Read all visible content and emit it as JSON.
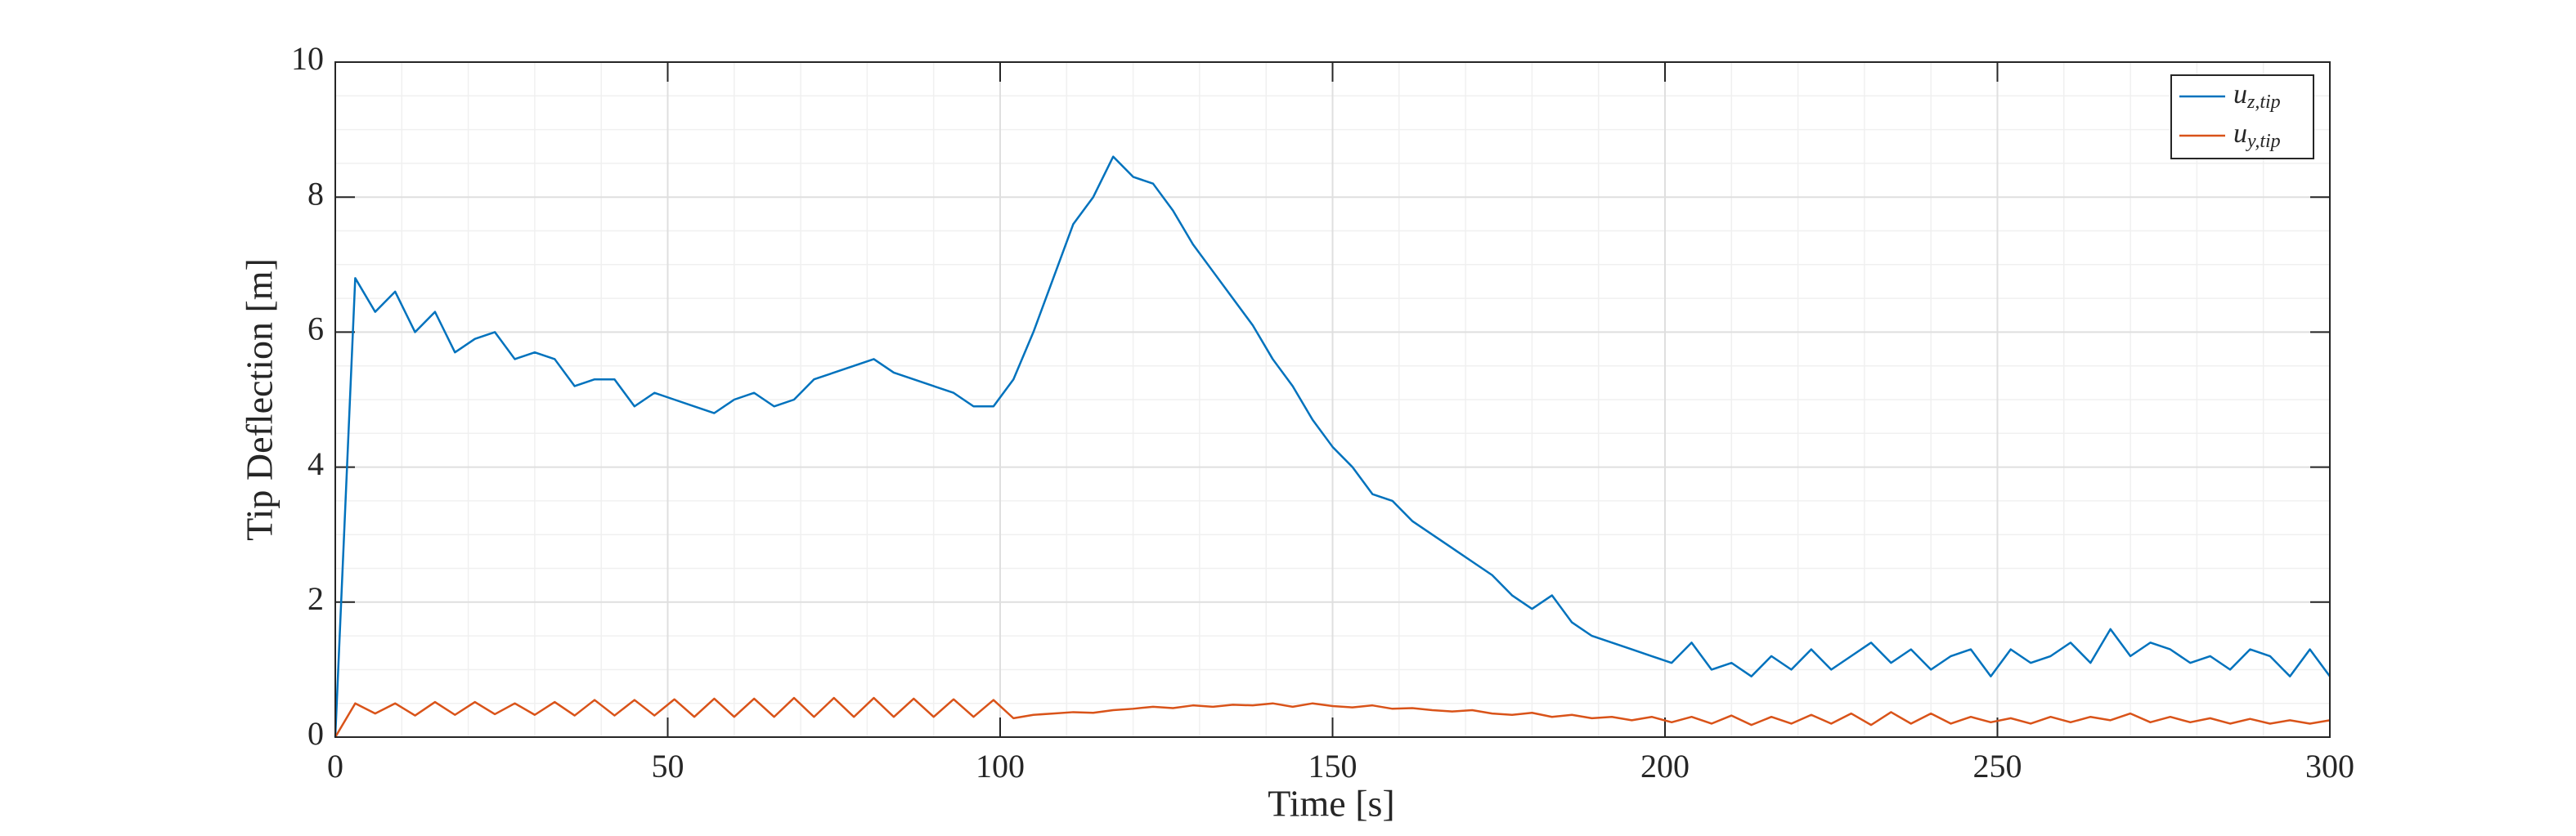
{
  "chart_data": {
    "type": "line",
    "xlabel": "Time [s]",
    "ylabel": "Tip Deflection [m]",
    "x": [
      0,
      3,
      6,
      9,
      12,
      15,
      18,
      21,
      24,
      27,
      30,
      33,
      36,
      39,
      42,
      45,
      48,
      51,
      54,
      57,
      60,
      63,
      66,
      69,
      72,
      75,
      78,
      81,
      84,
      87,
      90,
      93,
      96,
      99,
      102,
      105,
      108,
      111,
      114,
      117,
      120,
      123,
      126,
      129,
      132,
      135,
      138,
      141,
      144,
      147,
      150,
      153,
      156,
      159,
      162,
      165,
      168,
      171,
      174,
      177,
      180,
      183,
      186,
      189,
      192,
      195,
      198,
      201,
      204,
      207,
      210,
      213,
      216,
      219,
      222,
      225,
      228,
      231,
      234,
      237,
      240,
      243,
      246,
      249,
      252,
      255,
      258,
      261,
      264,
      267,
      270,
      273,
      276,
      279,
      282,
      285,
      288,
      291,
      294,
      297,
      300
    ],
    "series": [
      {
        "name": "uz,tip",
        "color": "#0072bd",
        "values": [
          0,
          6.8,
          6.3,
          6.6,
          6.0,
          6.3,
          5.7,
          5.9,
          6.0,
          5.6,
          5.7,
          5.6,
          5.2,
          5.3,
          5.3,
          4.9,
          5.1,
          5.0,
          4.9,
          4.8,
          5.0,
          5.1,
          4.9,
          5.0,
          5.3,
          5.4,
          5.5,
          5.6,
          5.4,
          5.3,
          5.2,
          5.1,
          4.9,
          4.9,
          5.3,
          6.0,
          6.8,
          7.6,
          8.0,
          8.6,
          8.3,
          8.2,
          7.8,
          7.3,
          6.9,
          6.5,
          6.1,
          5.6,
          5.2,
          4.7,
          4.3,
          4.0,
          3.6,
          3.5,
          3.2,
          3.0,
          2.8,
          2.6,
          2.4,
          2.1,
          1.9,
          2.1,
          1.7,
          1.5,
          1.4,
          1.3,
          1.2,
          1.1,
          1.4,
          1.0,
          1.1,
          0.9,
          1.2,
          1.0,
          1.3,
          1.0,
          1.2,
          1.4,
          1.1,
          1.3,
          1.0,
          1.2,
          1.3,
          0.9,
          1.3,
          1.1,
          1.2,
          1.4,
          1.1,
          1.6,
          1.2,
          1.4,
          1.3,
          1.1,
          1.2,
          1.0,
          1.3,
          1.2,
          0.9,
          1.3,
          0.9
        ]
      },
      {
        "name": "uy,tip",
        "color": "#d95319",
        "values": [
          0.0,
          0.5,
          0.35,
          0.5,
          0.32,
          0.52,
          0.33,
          0.52,
          0.34,
          0.5,
          0.33,
          0.52,
          0.32,
          0.55,
          0.32,
          0.55,
          0.32,
          0.56,
          0.3,
          0.57,
          0.3,
          0.57,
          0.3,
          0.58,
          0.3,
          0.58,
          0.3,
          0.58,
          0.3,
          0.57,
          0.3,
          0.56,
          0.3,
          0.55,
          0.28,
          0.33,
          0.35,
          0.37,
          0.36,
          0.4,
          0.42,
          0.45,
          0.43,
          0.47,
          0.45,
          0.48,
          0.47,
          0.5,
          0.45,
          0.5,
          0.46,
          0.44,
          0.47,
          0.42,
          0.43,
          0.4,
          0.38,
          0.4,
          0.35,
          0.33,
          0.36,
          0.3,
          0.33,
          0.28,
          0.3,
          0.25,
          0.3,
          0.22,
          0.3,
          0.2,
          0.32,
          0.18,
          0.3,
          0.2,
          0.33,
          0.2,
          0.35,
          0.18,
          0.37,
          0.2,
          0.35,
          0.2,
          0.3,
          0.22,
          0.28,
          0.2,
          0.3,
          0.22,
          0.3,
          0.25,
          0.35,
          0.22,
          0.3,
          0.22,
          0.28,
          0.2,
          0.27,
          0.2,
          0.25,
          0.2,
          0.25
        ]
      }
    ],
    "xlim": [
      0,
      300
    ],
    "xticks": [
      0,
      50,
      100,
      150,
      200,
      250,
      300
    ],
    "ylim": [
      0,
      10
    ],
    "yticks": [
      0,
      2,
      4,
      6,
      8,
      10
    ],
    "grid": true,
    "minor_grid": true,
    "legend": "northeast"
  }
}
